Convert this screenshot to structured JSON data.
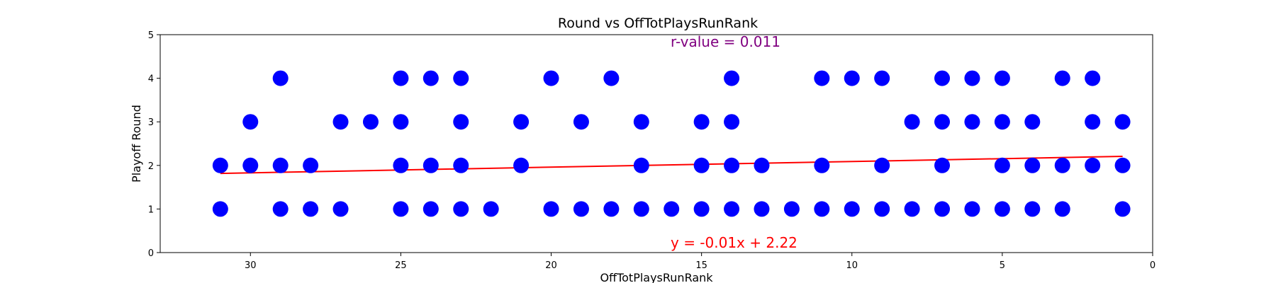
{
  "chart_data": {
    "type": "scatter",
    "title": "Round vs OffTotPlaysRunRank",
    "xlabel": "OffTotPlaysRunRank",
    "ylabel": "Playoff Round",
    "xlim": [
      33,
      0
    ],
    "ylim": [
      0,
      5
    ],
    "x_ticks": [
      30,
      25,
      20,
      15,
      10,
      5,
      0
    ],
    "y_ticks": [
      0,
      1,
      2,
      3,
      4,
      5
    ],
    "grid": false,
    "colors": {
      "points": "#0000ff",
      "line": "#ff0000",
      "rvalue": "#800080"
    },
    "points": [
      [
        31,
        2
      ],
      [
        31,
        1
      ],
      [
        30,
        3
      ],
      [
        30,
        2
      ],
      [
        29,
        4
      ],
      [
        29,
        2
      ],
      [
        29,
        1
      ],
      [
        28,
        2
      ],
      [
        28,
        1
      ],
      [
        27,
        3
      ],
      [
        27,
        1
      ],
      [
        26,
        3
      ],
      [
        25,
        4
      ],
      [
        25,
        3
      ],
      [
        25,
        2
      ],
      [
        25,
        1
      ],
      [
        24,
        4
      ],
      [
        24,
        2
      ],
      [
        24,
        1
      ],
      [
        23,
        4
      ],
      [
        23,
        3
      ],
      [
        23,
        2
      ],
      [
        23,
        1
      ],
      [
        22,
        1
      ],
      [
        21,
        3
      ],
      [
        21,
        2
      ],
      [
        20,
        4
      ],
      [
        20,
        1
      ],
      [
        19,
        3
      ],
      [
        19,
        1
      ],
      [
        18,
        4
      ],
      [
        18,
        1
      ],
      [
        17,
        3
      ],
      [
        17,
        2
      ],
      [
        17,
        1
      ],
      [
        16,
        1
      ],
      [
        15,
        3
      ],
      [
        15,
        2
      ],
      [
        15,
        1
      ],
      [
        14,
        4
      ],
      [
        14,
        3
      ],
      [
        14,
        2
      ],
      [
        14,
        1
      ],
      [
        13,
        2
      ],
      [
        13,
        1
      ],
      [
        12,
        1
      ],
      [
        11,
        4
      ],
      [
        11,
        2
      ],
      [
        11,
        1
      ],
      [
        10,
        4
      ],
      [
        10,
        1
      ],
      [
        9,
        4
      ],
      [
        9,
        2
      ],
      [
        9,
        1
      ],
      [
        8,
        3
      ],
      [
        8,
        1
      ],
      [
        7,
        4
      ],
      [
        7,
        3
      ],
      [
        7,
        2
      ],
      [
        7,
        1
      ],
      [
        6,
        4
      ],
      [
        6,
        3
      ],
      [
        6,
        1
      ],
      [
        5,
        4
      ],
      [
        5,
        3
      ],
      [
        5,
        2
      ],
      [
        5,
        1
      ],
      [
        4,
        3
      ],
      [
        4,
        2
      ],
      [
        4,
        1
      ],
      [
        3,
        4
      ],
      [
        3,
        2
      ],
      [
        3,
        1
      ],
      [
        2,
        4
      ],
      [
        2,
        3
      ],
      [
        2,
        2
      ],
      [
        1,
        3
      ],
      [
        1,
        2
      ],
      [
        1,
        1
      ]
    ],
    "regression": {
      "slope": -0.013,
      "intercept": 2.22,
      "x_range": [
        31,
        1
      ]
    },
    "annotations": {
      "r_value": "r-value = 0.011",
      "equation": "y = -0.01x + 2.22"
    }
  }
}
